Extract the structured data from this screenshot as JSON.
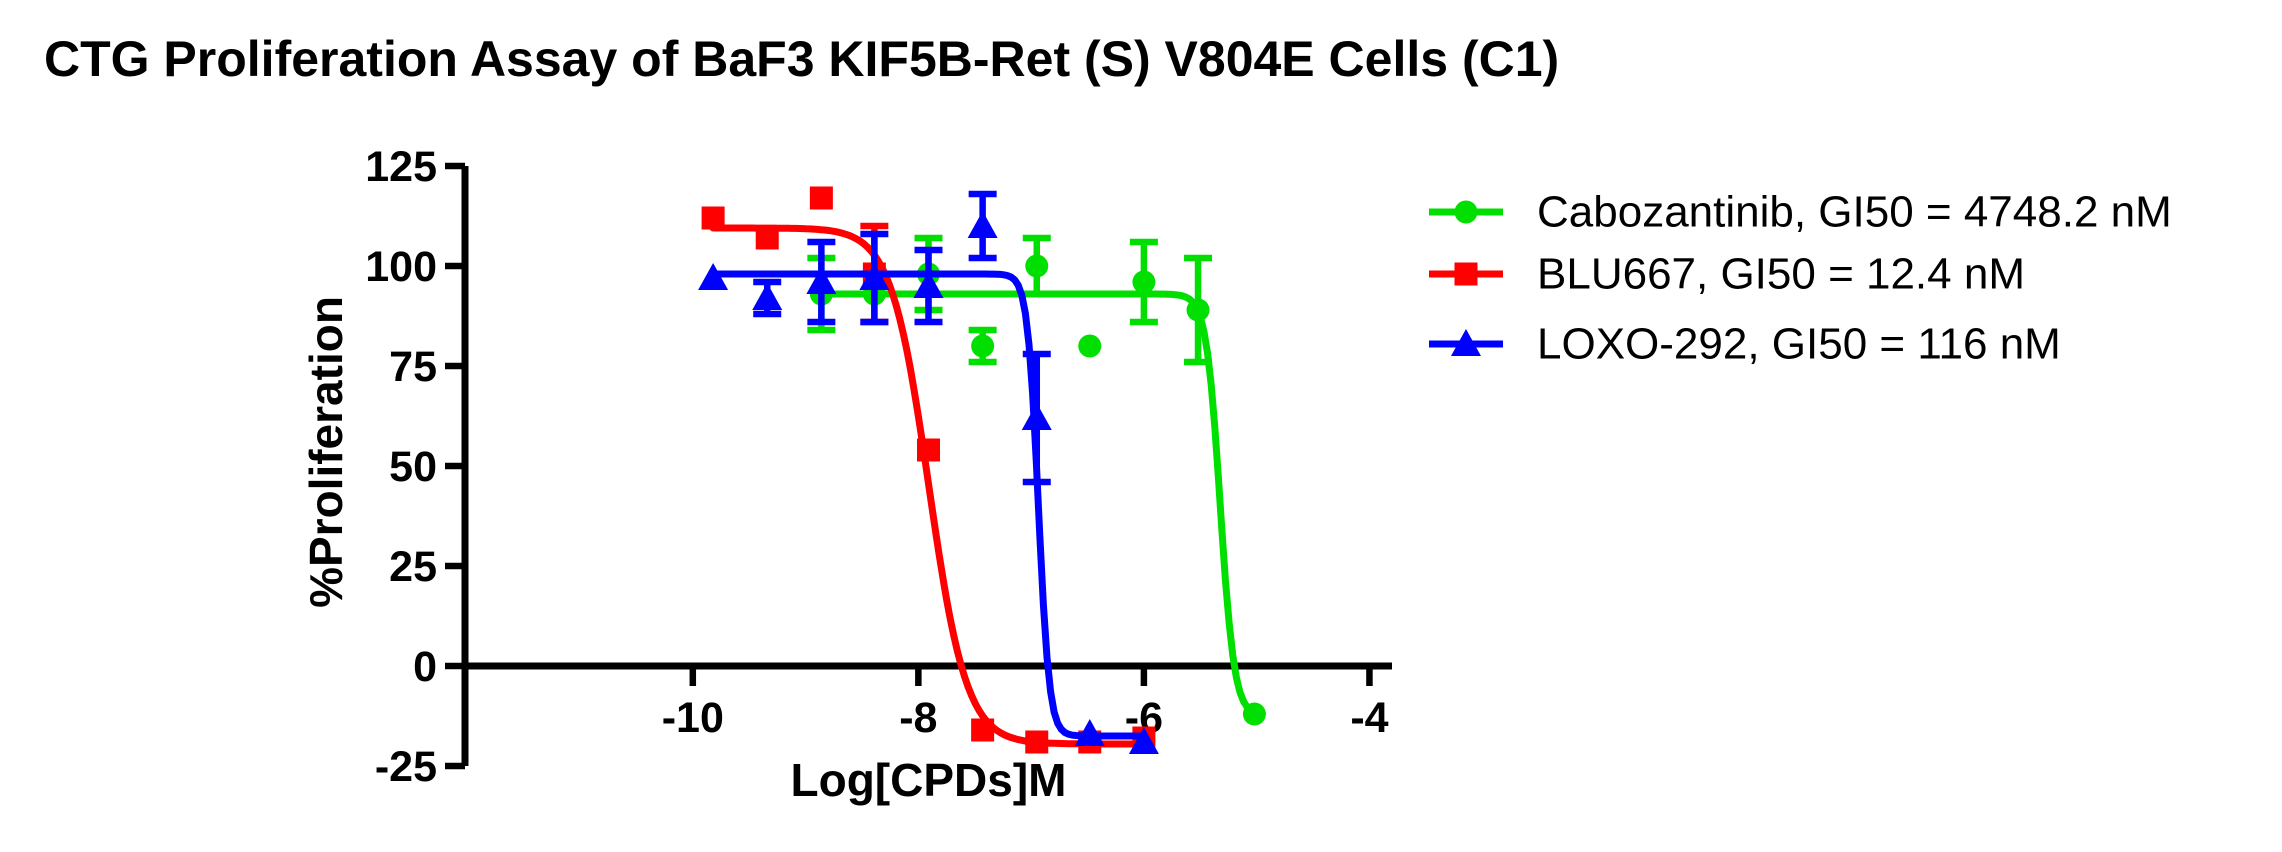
{
  "title": "CTG Proliferation Assay of BaF3 KIF5B-Ret (S) V804E Cells (C1)",
  "colors": {
    "background": "#FFFFFF",
    "axis": "#000000",
    "cabozantinib_green": "#00DF00",
    "blu667_red": "#FF0000",
    "loxo292_blue": "#0000FF"
  },
  "legend": {
    "position": "right",
    "items": [
      {
        "label": "Cabozantinib, GI50 = 4748.2 nM",
        "marker": "circle-icon",
        "color": "#00DF00"
      },
      {
        "label": "BLU667, GI50 = 12.4 nM",
        "marker": "square-icon",
        "color": "#FF0000"
      },
      {
        "label": "LOXO-292, GI50 = 116 nM",
        "marker": "triangle-icon",
        "color": "#0000FF"
      }
    ]
  },
  "chart_data": {
    "type": "line",
    "subtype": "dose-response scatter with sigmoidal fit and error bars",
    "title": "CTG Proliferation Assay of BaF3 KIF5B-Ret (S) V804E Cells (C1)",
    "xlabel": "Log[CPDs]M",
    "ylabel": "%Proliferation",
    "xlim": [
      -12.02,
      -3.8
    ],
    "ylim": [
      -25,
      125
    ],
    "x_ticks": [
      -10,
      -8,
      -6,
      -4
    ],
    "y_ticks": [
      125,
      100,
      75,
      50,
      25,
      0,
      -25
    ],
    "grid": false,
    "legend_position": "right",
    "series": [
      {
        "id": "cabozantinib",
        "name": "Cabozantinib",
        "legend_label": "Cabozantinib, GI50 = 4748.2 nM",
        "gi50_nM": 4748.2,
        "color": "#00DF00",
        "marker": "circle",
        "x": [
          -8.86,
          -8.39,
          -7.91,
          -7.43,
          -6.95,
          -6.48,
          -6.0,
          -5.52,
          -5.02
        ],
        "y": [
          93,
          93,
          98,
          80,
          100,
          80,
          96,
          89,
          -12
        ],
        "err": [
          9,
          null,
          9,
          4,
          7,
          null,
          10,
          13,
          null
        ],
        "fit": {
          "top": 93,
          "bottom": -12.5,
          "log_gi50": -5.323,
          "hill": 7
        }
      },
      {
        "id": "blu667",
        "name": "BLU667",
        "legend_label": "BLU667, GI50 = 12.4 nM",
        "gi50_nM": 12.4,
        "color": "#FF0000",
        "marker": "square",
        "x": [
          -9.82,
          -9.34,
          -8.86,
          -8.39,
          -7.91,
          -7.43,
          -6.95,
          -6.48,
          -6.0
        ],
        "y": [
          112,
          107,
          117,
          98,
          54,
          -16,
          -19,
          -19,
          -18
        ],
        "err": [
          null,
          null,
          null,
          12,
          null,
          null,
          null,
          null,
          null
        ],
        "fit": {
          "top": 109.5,
          "bottom": -19.5,
          "log_gi50": -7.907,
          "hill": 2.6
        }
      },
      {
        "id": "loxo292",
        "name": "LOXO-292",
        "legend_label": "LOXO-292, GI50 = 116 nM",
        "gi50_nM": 116,
        "color": "#0000FF",
        "marker": "triangle",
        "x": [
          -9.82,
          -9.34,
          -8.86,
          -8.39,
          -7.91,
          -7.43,
          -6.95,
          -6.48,
          -6.0
        ],
        "y": [
          97,
          92,
          96,
          97,
          95,
          110,
          62,
          -17,
          -19
        ],
        "err": [
          null,
          4,
          10,
          11,
          9,
          8,
          16,
          null,
          null
        ],
        "fit": {
          "top": 98,
          "bottom": -17.5,
          "log_gi50": -6.936,
          "hill": 9
        }
      }
    ]
  }
}
